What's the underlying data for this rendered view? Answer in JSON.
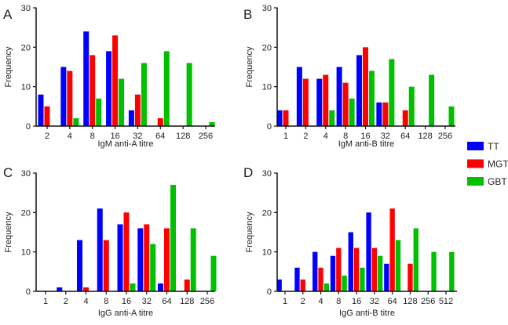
{
  "colors": {
    "TT": "#0000ff",
    "MGT": "#ff0000",
    "GBT": "#00c000"
  },
  "legend": [
    {
      "name": "TT",
      "color": "#0000ff"
    },
    {
      "name": "MGT",
      "color": "#ff0000"
    },
    {
      "name": "GBT",
      "color": "#00c000"
    }
  ],
  "chart_data": [
    {
      "panel": "A",
      "type": "bar",
      "title": "",
      "xlabel": "IgM anti-A titre",
      "ylabel": "Frequency",
      "ylim": [
        0,
        30
      ],
      "yticks": [
        0,
        10,
        20,
        30
      ],
      "grid": false,
      "categories": [
        "2",
        "4",
        "8",
        "16",
        "32",
        "64",
        "128",
        "256"
      ],
      "series": [
        {
          "name": "TT",
          "values": [
            8,
            15,
            24,
            19,
            4,
            0,
            0,
            0
          ]
        },
        {
          "name": "MGT",
          "values": [
            5,
            14,
            18,
            23,
            8,
            2,
            0,
            0
          ]
        },
        {
          "name": "GBT",
          "values": [
            0,
            2,
            7,
            12,
            16,
            19,
            16,
            1
          ]
        }
      ]
    },
    {
      "panel": "B",
      "type": "bar",
      "title": "",
      "xlabel": "IgM anti-B titre",
      "ylabel": "Frequency",
      "ylim": [
        0,
        30
      ],
      "yticks": [
        0,
        10,
        20,
        30
      ],
      "grid": false,
      "categories": [
        "1",
        "2",
        "4",
        "8",
        "16",
        "32",
        "64",
        "128",
        "256"
      ],
      "series": [
        {
          "name": "TT",
          "values": [
            4,
            15,
            12,
            15,
            18,
            6,
            0,
            0,
            0
          ]
        },
        {
          "name": "MGT",
          "values": [
            4,
            12,
            13,
            11,
            20,
            6,
            4,
            0,
            0
          ]
        },
        {
          "name": "GBT",
          "values": [
            0,
            0,
            4,
            7,
            14,
            17,
            10,
            13,
            5
          ]
        }
      ]
    },
    {
      "panel": "C",
      "type": "bar",
      "title": "",
      "xlabel": "IgG anti-A titre",
      "ylabel": "Frequency",
      "ylim": [
        0,
        30
      ],
      "yticks": [
        0,
        10,
        20,
        30
      ],
      "grid": false,
      "categories": [
        "1",
        "2",
        "4",
        "8",
        "16",
        "32",
        "64",
        "128",
        "256"
      ],
      "series": [
        {
          "name": "TT",
          "values": [
            0,
            1,
            13,
            21,
            17,
            16,
            2,
            0,
            0
          ]
        },
        {
          "name": "MGT",
          "values": [
            0,
            0,
            1,
            13,
            20,
            17,
            16,
            3,
            0
          ]
        },
        {
          "name": "GBT",
          "values": [
            0,
            0,
            0,
            0,
            2,
            12,
            27,
            16,
            9
          ]
        }
      ]
    },
    {
      "panel": "D",
      "type": "bar",
      "title": "",
      "xlabel": "IgG anti-B titre",
      "ylabel": "Frequency",
      "ylim": [
        0,
        30
      ],
      "yticks": [
        0,
        10,
        20,
        30
      ],
      "grid": false,
      "categories": [
        "1",
        "2",
        "4",
        "8",
        "16",
        "32",
        "64",
        "128",
        "256",
        "512"
      ],
      "series": [
        {
          "name": "TT",
          "values": [
            3,
            6,
            10,
            9,
            15,
            20,
            7,
            0,
            0,
            0
          ]
        },
        {
          "name": "MGT",
          "values": [
            0,
            3,
            6,
            11,
            11,
            11,
            21,
            7,
            0,
            0
          ]
        },
        {
          "name": "GBT",
          "values": [
            0,
            0,
            2,
            4,
            6,
            9,
            13,
            16,
            10,
            10
          ]
        }
      ]
    }
  ]
}
